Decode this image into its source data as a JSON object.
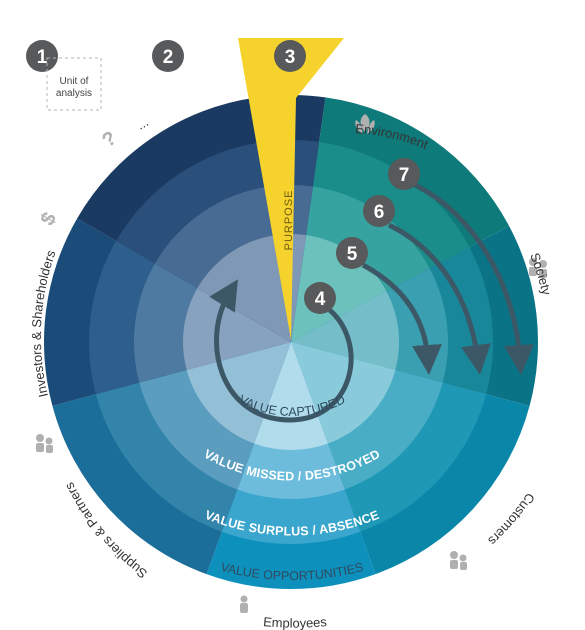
{
  "badges": [
    "1",
    "2",
    "3",
    "4",
    "5",
    "6",
    "7"
  ],
  "unit_box": {
    "line1": "Unit of",
    "line2": "analysis"
  },
  "ellipsis": "...",
  "purpose": "PURPOSE",
  "stakeholders": {
    "environment": "Environment",
    "society": "Society",
    "customers": "Customers",
    "employees": "Employees",
    "suppliers": "Suppliers & Partners",
    "investors": "Investors & Shareholders"
  },
  "rings": {
    "captured": "VALUE CAPTURED",
    "missed": "VALUE MISSED / DESTROYED",
    "surplus": "VALUE SURPLUS / ABSENCE",
    "opportunities": "VALUE OPPORTUNITIES"
  },
  "icons": {
    "environment": "leaf-icon",
    "society": "people-group-icon",
    "customers": "customers-icon",
    "employees": "employee-icon",
    "suppliers": "partners-icon",
    "investors": "dollar-icon",
    "unknown": "question-mark-icon"
  },
  "colors": {
    "purpose": "#f6d32c",
    "badge": "#58595b",
    "arrow": "#3c5866"
  }
}
